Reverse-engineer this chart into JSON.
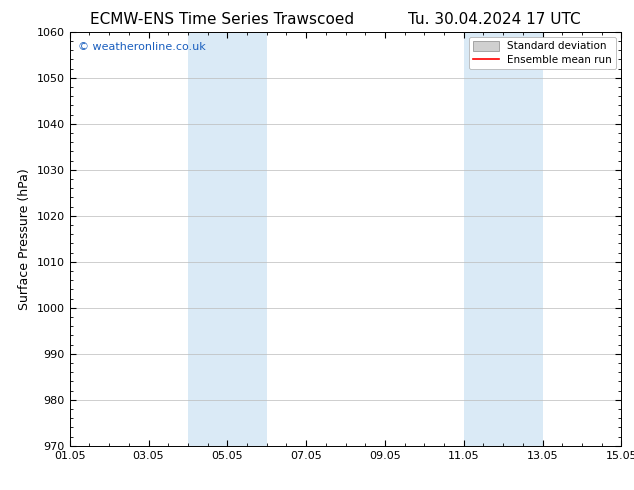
{
  "title_left": "ECMW-ENS Time Series Trawscoed",
  "title_right": "Tu. 30.04.2024 17 UTC",
  "ylabel": "Surface Pressure (hPa)",
  "xlim": [
    1.05,
    15.05
  ],
  "ylim": [
    970,
    1060
  ],
  "yticks": [
    970,
    980,
    990,
    1000,
    1010,
    1020,
    1030,
    1040,
    1050,
    1060
  ],
  "xtick_labels": [
    "01.05",
    "03.05",
    "05.05",
    "07.05",
    "09.05",
    "11.05",
    "13.05",
    "15.05"
  ],
  "xtick_positions": [
    1.05,
    3.05,
    5.05,
    7.05,
    9.05,
    11.05,
    13.05,
    15.05
  ],
  "shaded_bands": [
    {
      "x_start": 4.05,
      "x_end": 6.05
    },
    {
      "x_start": 11.05,
      "x_end": 13.05
    }
  ],
  "shade_color": "#daeaf6",
  "watermark_text": "© weatheronline.co.uk",
  "watermark_color": "#1a5fbf",
  "legend_entries": [
    {
      "label": "Standard deviation",
      "color": "#d0d0d0",
      "type": "patch"
    },
    {
      "label": "Ensemble mean run",
      "color": "#ff0000",
      "type": "line"
    }
  ],
  "background_color": "#ffffff",
  "grid_color": "#bbbbbb",
  "title_fontsize": 11,
  "tick_fontsize": 8,
  "ylabel_fontsize": 9
}
